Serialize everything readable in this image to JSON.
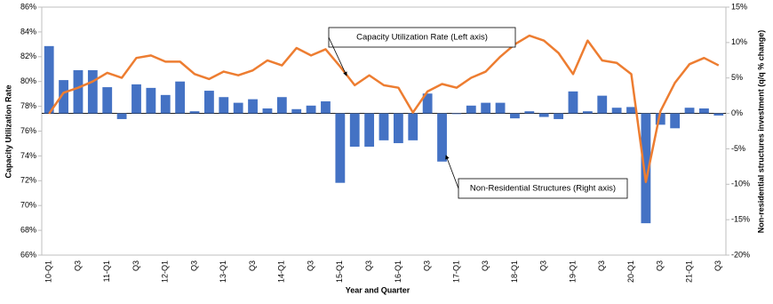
{
  "chart_data": {
    "type": "bar-line",
    "x_label": "Year and Quarter",
    "y_label": "Capacity Utilization Rate",
    "y2_label": "Non-residential structures investment (q/q % change)",
    "categories": [
      "10-Q1",
      null,
      "Q3",
      null,
      "11-Q1",
      null,
      "Q3",
      null,
      "12-Q1",
      null,
      "Q3",
      null,
      "13-Q1",
      null,
      "Q3",
      null,
      "14-Q1",
      null,
      "Q3",
      null,
      "15-Q1",
      null,
      "Q3",
      null,
      "16-Q1",
      null,
      "Q3",
      null,
      "17-Q1",
      null,
      "Q3",
      null,
      "18-Q1",
      null,
      "Q3",
      null,
      "19-Q1",
      null,
      "Q3",
      null,
      "20-Q1",
      null,
      "Q3",
      null,
      "21-Q1",
      null,
      "Q3"
    ],
    "series": [
      {
        "name": "Non-Residential Structures (Right axis)",
        "type": "bar",
        "axis": "y2",
        "color": "#4472c4",
        "values": [
          9.5,
          4.7,
          6.1,
          6.1,
          3.7,
          -0.8,
          4.1,
          3.6,
          2.6,
          4.5,
          0.3,
          3.2,
          2.3,
          1.5,
          2.0,
          0.7,
          2.3,
          0.6,
          1.1,
          1.7,
          -9.8,
          -4.7,
          -4.7,
          -3.8,
          -4.2,
          -3.8,
          2.8,
          -6.8,
          -0.1,
          1.1,
          1.5,
          1.5,
          -0.7,
          0.3,
          -0.5,
          -0.8,
          3.1,
          0.3,
          2.5,
          0.8,
          0.9,
          -15.5,
          -1.6,
          -2.1,
          0.8,
          0.7,
          -0.3
        ]
      },
      {
        "name": "Capacity Utilization Rate (Left axis)",
        "type": "line",
        "color": "#ed7d31",
        "values": [
          77.4,
          79.1,
          79.5,
          80.0,
          80.7,
          80.3,
          81.9,
          82.1,
          81.6,
          81.6,
          80.6,
          80.2,
          80.8,
          80.5,
          80.9,
          81.7,
          81.3,
          82.7,
          82.1,
          82.6,
          81.2,
          79.7,
          80.5,
          79.7,
          79.5,
          77.5,
          79.2,
          79.8,
          79.5,
          80.3,
          80.8,
          82.0,
          83.0,
          83.7,
          83.3,
          82.3,
          80.6,
          83.3,
          81.7,
          81.5,
          80.6,
          71.9,
          77.6,
          79.9,
          81.4,
          81.9,
          81.3
        ]
      }
    ],
    "ylim": [
      66,
      86
    ],
    "yticks": [
      {
        "value": 66,
        "label": "66%"
      },
      {
        "value": 68,
        "label": "68%"
      },
      {
        "value": 70,
        "label": "70%"
      },
      {
        "value": 72,
        "label": "72%"
      },
      {
        "value": 74,
        "label": "74%"
      },
      {
        "value": 76,
        "label": "76%"
      },
      {
        "value": 78,
        "label": "78%"
      },
      {
        "value": 80,
        "label": "80%"
      },
      {
        "value": 82,
        "label": "82%"
      },
      {
        "value": 84,
        "label": "84%"
      },
      {
        "value": 86,
        "label": "86%"
      }
    ],
    "y2lim": [
      -20,
      15
    ],
    "y2ticks": [
      {
        "value": -20,
        "label": "-20%"
      },
      {
        "value": -15,
        "label": "-15%"
      },
      {
        "value": -10,
        "label": "-10%"
      },
      {
        "value": -5,
        "label": "-5%"
      },
      {
        "value": 0,
        "label": "0%"
      },
      {
        "value": 5,
        "label": "5%"
      },
      {
        "value": 10,
        "label": "10%"
      },
      {
        "value": 15,
        "label": "15%"
      }
    ]
  }
}
